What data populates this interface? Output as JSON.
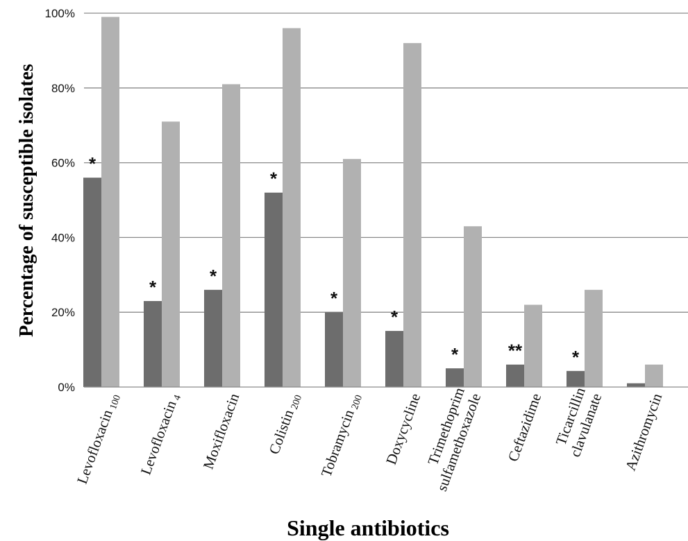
{
  "chart_data": {
    "type": "bar",
    "title": "",
    "xlabel": "Single antibiotics",
    "ylabel": "Percentage of susceptible isolates",
    "ylim": [
      0,
      100
    ],
    "yticks": [
      "0%",
      "20%",
      "40%",
      "60%",
      "80%",
      "100%"
    ],
    "grid": true,
    "categories": [
      {
        "main": "Levofloxacin",
        "sub": "100"
      },
      {
        "main": "Levofloxacin",
        "sub": "4"
      },
      {
        "main": "Moxifloxacin",
        "sub": ""
      },
      {
        "main": "Colistin",
        "sub": "200"
      },
      {
        "main": "Tobramycin",
        "sub": "200"
      },
      {
        "main": "Doxycycline",
        "sub": ""
      },
      {
        "main": "Trimethoprim\nsulfamethoxazole",
        "sub": ""
      },
      {
        "main": "Ceftazidime",
        "sub": ""
      },
      {
        "main": "Ticarcillin\nclavulanate",
        "sub": ""
      },
      {
        "main": "Azithromycin",
        "sub": ""
      }
    ],
    "series": [
      {
        "color": "#6d6d6d",
        "values": [
          56,
          23,
          26,
          52,
          20,
          15,
          5,
          6,
          4.3,
          1
        ]
      },
      {
        "color": "#b1b1b1",
        "values": [
          99,
          71,
          81,
          96,
          61,
          92,
          43,
          22,
          26,
          6
        ]
      }
    ],
    "annotations": [
      "*",
      "*",
      "*",
      "*",
      "*",
      "*",
      "*",
      "**",
      "*",
      ""
    ]
  }
}
